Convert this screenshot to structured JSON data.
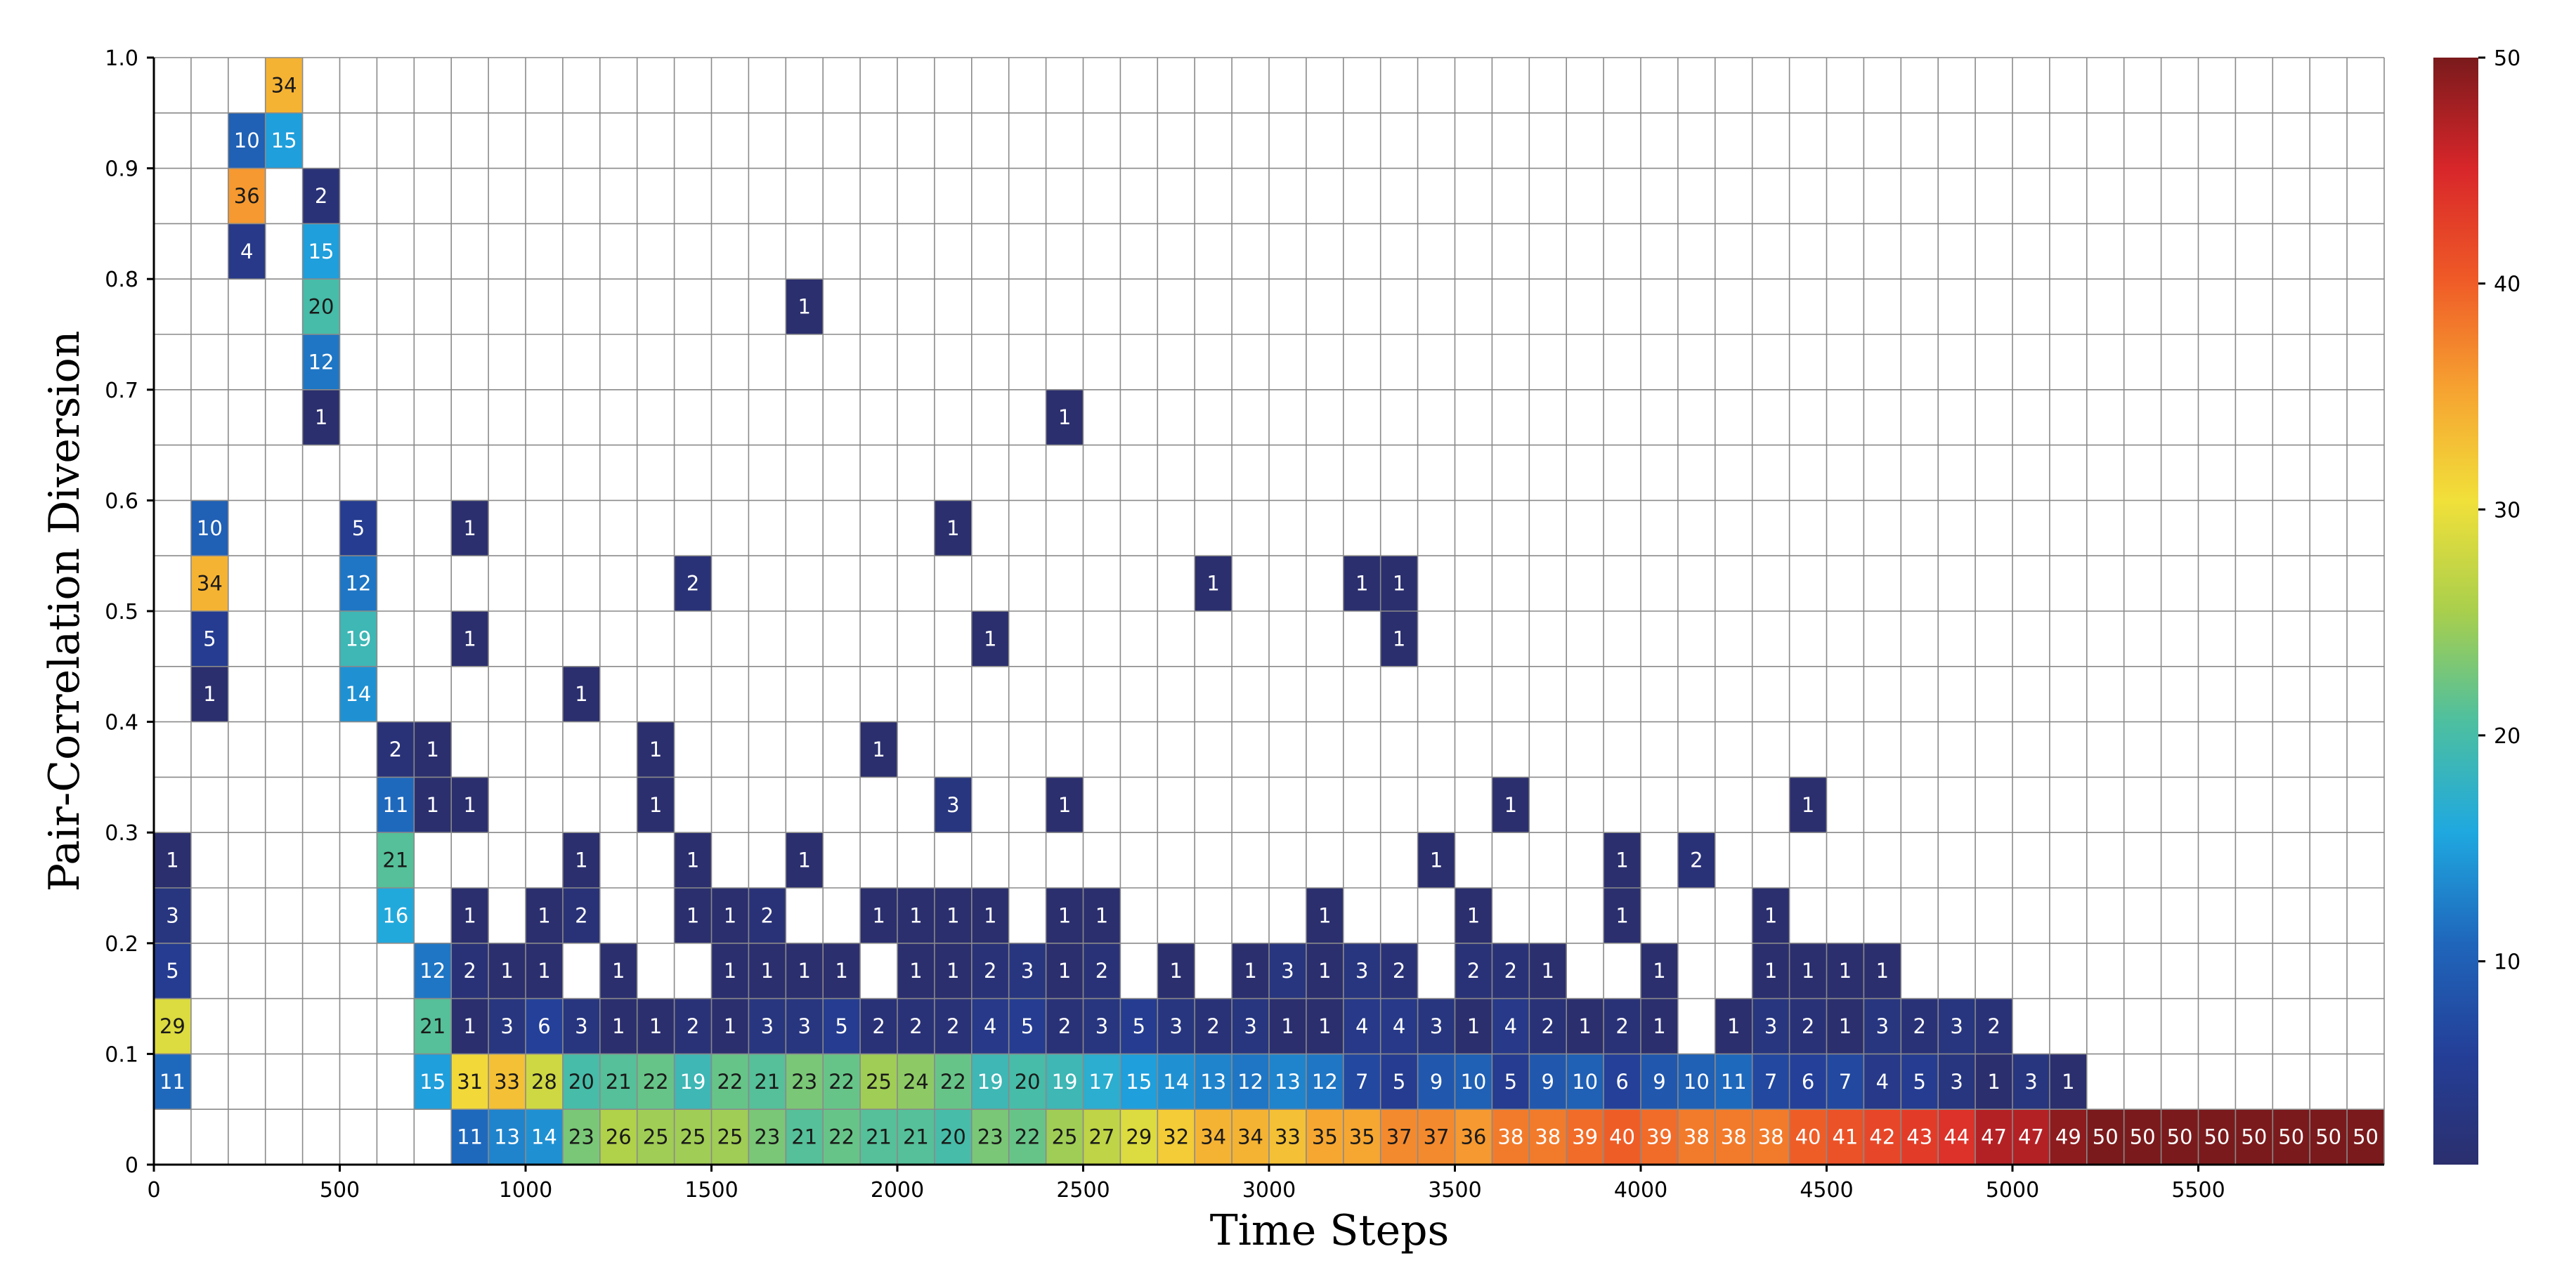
{
  "chart_data": {
    "type": "heatmap",
    "xlabel": "Time Steps",
    "ylabel": "Pair-Correlation Diversion",
    "x_bin_width": 100,
    "y_bin_width": 0.05,
    "xlim": [
      0,
      6000
    ],
    "ylim": [
      0,
      1.0
    ],
    "x_ticks": [
      0,
      500,
      1000,
      1500,
      2000,
      2500,
      3000,
      3500,
      4000,
      4500,
      5000,
      5500
    ],
    "x_tick_labels": [
      "0",
      "500",
      "1000",
      "1500",
      "2000",
      "2500",
      "3000",
      "3500",
      "4000",
      "4500",
      "5000",
      "5500"
    ],
    "y_ticks": [
      0,
      0.1,
      0.2,
      0.3,
      0.4,
      0.5,
      0.6,
      0.7,
      0.8,
      0.9,
      1.0
    ],
    "y_tick_labels": [
      "0",
      "0.1",
      "0.2",
      "0.3",
      "0.4",
      "0.5",
      "0.6",
      "0.7",
      "0.8",
      "0.9",
      "1.0"
    ],
    "colorbar": {
      "min": 1,
      "max": 50,
      "ticks": [
        10,
        20,
        30,
        40,
        50
      ],
      "tick_labels": [
        "10",
        "20",
        "30",
        "40",
        "50"
      ],
      "stops": [
        "#2b2f6e",
        "#243f98",
        "#1f66bb",
        "#1fa8e0",
        "#4dbfa0",
        "#a9cf4c",
        "#f1e03a",
        "#f6a331",
        "#ef5a27",
        "#d8262a",
        "#7a1a1c"
      ]
    },
    "cells": [
      {
        "x": 0,
        "y": 0.3,
        "v": 1
      },
      {
        "x": 0,
        "y": 0.25,
        "v": 3
      },
      {
        "x": 0,
        "y": 0.2,
        "v": 5
      },
      {
        "x": 0,
        "y": 0.15,
        "v": 29
      },
      {
        "x": 0,
        "y": 0.1,
        "v": 11
      },
      {
        "x": 100,
        "y": 0.6,
        "v": 10
      },
      {
        "x": 100,
        "y": 0.55,
        "v": 34
      },
      {
        "x": 100,
        "y": 0.5,
        "v": 5
      },
      {
        "x": 100,
        "y": 0.45,
        "v": 1
      },
      {
        "x": 200,
        "y": 0.95,
        "v": 10
      },
      {
        "x": 200,
        "y": 0.9,
        "v": 36
      },
      {
        "x": 200,
        "y": 0.85,
        "v": 4
      },
      {
        "x": 300,
        "y": 1.0,
        "v": 34
      },
      {
        "x": 300,
        "y": 0.95,
        "v": 15
      },
      {
        "x": 400,
        "y": 0.9,
        "v": 2
      },
      {
        "x": 400,
        "y": 0.85,
        "v": 15
      },
      {
        "x": 400,
        "y": 0.8,
        "v": 20
      },
      {
        "x": 400,
        "y": 0.75,
        "v": 12
      },
      {
        "x": 400,
        "y": 0.7,
        "v": 1
      },
      {
        "x": 500,
        "y": 0.6,
        "v": 5
      },
      {
        "x": 500,
        "y": 0.55,
        "v": 12
      },
      {
        "x": 500,
        "y": 0.5,
        "v": 19
      },
      {
        "x": 500,
        "y": 0.45,
        "v": 14
      },
      {
        "x": 600,
        "y": 0.4,
        "v": 2
      },
      {
        "x": 600,
        "y": 0.35,
        "v": 11
      },
      {
        "x": 600,
        "y": 0.3,
        "v": 21
      },
      {
        "x": 600,
        "y": 0.25,
        "v": 16
      },
      {
        "x": 700,
        "y": 0.4,
        "v": 1
      },
      {
        "x": 700,
        "y": 0.35,
        "v": 1
      },
      {
        "x": 700,
        "y": 0.2,
        "v": 12
      },
      {
        "x": 700,
        "y": 0.15,
        "v": 21
      },
      {
        "x": 700,
        "y": 0.1,
        "v": 15
      },
      {
        "x": 800,
        "y": 0.6,
        "v": 1
      },
      {
        "x": 800,
        "y": 0.5,
        "v": 1
      },
      {
        "x": 800,
        "y": 0.35,
        "v": 1
      },
      {
        "x": 800,
        "y": 0.25,
        "v": 1
      },
      {
        "x": 800,
        "y": 0.2,
        "v": 2
      },
      {
        "x": 800,
        "y": 0.15,
        "v": 1
      },
      {
        "x": 800,
        "y": 0.1,
        "v": 31
      },
      {
        "x": 800,
        "y": 0.05,
        "v": 11
      },
      {
        "x": 900,
        "y": 0.2,
        "v": 1
      },
      {
        "x": 900,
        "y": 0.15,
        "v": 3
      },
      {
        "x": 900,
        "y": 0.1,
        "v": 33
      },
      {
        "x": 900,
        "y": 0.05,
        "v": 13
      },
      {
        "x": 1000,
        "y": 0.25,
        "v": 1
      },
      {
        "x": 1000,
        "y": 0.2,
        "v": 1
      },
      {
        "x": 1000,
        "y": 0.15,
        "v": 6
      },
      {
        "x": 1000,
        "y": 0.1,
        "v": 28
      },
      {
        "x": 1000,
        "y": 0.05,
        "v": 14
      },
      {
        "x": 1100,
        "y": 0.45,
        "v": 1
      },
      {
        "x": 1100,
        "y": 0.3,
        "v": 1
      },
      {
        "x": 1100,
        "y": 0.25,
        "v": 2
      },
      {
        "x": 1100,
        "y": 0.15,
        "v": 3
      },
      {
        "x": 1100,
        "y": 0.1,
        "v": 20
      },
      {
        "x": 1100,
        "y": 0.05,
        "v": 23
      },
      {
        "x": 1200,
        "y": 0.2,
        "v": 1
      },
      {
        "x": 1200,
        "y": 0.15,
        "v": 1
      },
      {
        "x": 1200,
        "y": 0.1,
        "v": 21
      },
      {
        "x": 1200,
        "y": 0.05,
        "v": 26
      },
      {
        "x": 1300,
        "y": 0.4,
        "v": 1
      },
      {
        "x": 1300,
        "y": 0.35,
        "v": 1
      },
      {
        "x": 1300,
        "y": 0.15,
        "v": 1
      },
      {
        "x": 1300,
        "y": 0.1,
        "v": 22
      },
      {
        "x": 1300,
        "y": 0.05,
        "v": 25
      },
      {
        "x": 1400,
        "y": 0.55,
        "v": 2
      },
      {
        "x": 1400,
        "y": 0.3,
        "v": 1
      },
      {
        "x": 1400,
        "y": 0.25,
        "v": 1
      },
      {
        "x": 1400,
        "y": 0.15,
        "v": 2
      },
      {
        "x": 1400,
        "y": 0.1,
        "v": 19
      },
      {
        "x": 1400,
        "y": 0.05,
        "v": 25
      },
      {
        "x": 1500,
        "y": 0.25,
        "v": 1
      },
      {
        "x": 1500,
        "y": 0.2,
        "v": 1
      },
      {
        "x": 1500,
        "y": 0.15,
        "v": 1
      },
      {
        "x": 1500,
        "y": 0.1,
        "v": 22
      },
      {
        "x": 1500,
        "y": 0.05,
        "v": 25
      },
      {
        "x": 1600,
        "y": 0.25,
        "v": 2
      },
      {
        "x": 1600,
        "y": 0.2,
        "v": 1
      },
      {
        "x": 1600,
        "y": 0.15,
        "v": 3
      },
      {
        "x": 1600,
        "y": 0.1,
        "v": 21
      },
      {
        "x": 1600,
        "y": 0.05,
        "v": 23
      },
      {
        "x": 1700,
        "y": 0.8,
        "v": 1
      },
      {
        "x": 1700,
        "y": 0.3,
        "v": 1
      },
      {
        "x": 1700,
        "y": 0.2,
        "v": 1
      },
      {
        "x": 1700,
        "y": 0.15,
        "v": 3
      },
      {
        "x": 1700,
        "y": 0.1,
        "v": 23
      },
      {
        "x": 1700,
        "y": 0.05,
        "v": 21
      },
      {
        "x": 1800,
        "y": 0.2,
        "v": 1
      },
      {
        "x": 1800,
        "y": 0.15,
        "v": 5
      },
      {
        "x": 1800,
        "y": 0.1,
        "v": 22
      },
      {
        "x": 1800,
        "y": 0.05,
        "v": 22
      },
      {
        "x": 1900,
        "y": 0.4,
        "v": 1
      },
      {
        "x": 1900,
        "y": 0.25,
        "v": 1
      },
      {
        "x": 1900,
        "y": 0.15,
        "v": 2
      },
      {
        "x": 1900,
        "y": 0.1,
        "v": 25
      },
      {
        "x": 1900,
        "y": 0.05,
        "v": 21
      },
      {
        "x": 2000,
        "y": 0.25,
        "v": 1
      },
      {
        "x": 2000,
        "y": 0.2,
        "v": 1
      },
      {
        "x": 2000,
        "y": 0.15,
        "v": 2
      },
      {
        "x": 2000,
        "y": 0.1,
        "v": 24
      },
      {
        "x": 2000,
        "y": 0.05,
        "v": 21
      },
      {
        "x": 2100,
        "y": 0.6,
        "v": 1
      },
      {
        "x": 2100,
        "y": 0.35,
        "v": 3
      },
      {
        "x": 2100,
        "y": 0.25,
        "v": 1
      },
      {
        "x": 2100,
        "y": 0.2,
        "v": 1
      },
      {
        "x": 2100,
        "y": 0.15,
        "v": 2
      },
      {
        "x": 2100,
        "y": 0.1,
        "v": 22
      },
      {
        "x": 2100,
        "y": 0.05,
        "v": 20
      },
      {
        "x": 2200,
        "y": 0.5,
        "v": 1
      },
      {
        "x": 2200,
        "y": 0.25,
        "v": 1
      },
      {
        "x": 2200,
        "y": 0.2,
        "v": 2
      },
      {
        "x": 2200,
        "y": 0.15,
        "v": 4
      },
      {
        "x": 2200,
        "y": 0.1,
        "v": 19
      },
      {
        "x": 2200,
        "y": 0.05,
        "v": 23
      },
      {
        "x": 2300,
        "y": 0.2,
        "v": 3
      },
      {
        "x": 2300,
        "y": 0.15,
        "v": 5
      },
      {
        "x": 2300,
        "y": 0.1,
        "v": 20
      },
      {
        "x": 2300,
        "y": 0.05,
        "v": 22
      },
      {
        "x": 2400,
        "y": 0.7,
        "v": 1
      },
      {
        "x": 2400,
        "y": 0.35,
        "v": 1
      },
      {
        "x": 2400,
        "y": 0.25,
        "v": 1
      },
      {
        "x": 2400,
        "y": 0.2,
        "v": 1
      },
      {
        "x": 2400,
        "y": 0.15,
        "v": 2
      },
      {
        "x": 2400,
        "y": 0.1,
        "v": 19
      },
      {
        "x": 2400,
        "y": 0.05,
        "v": 25
      },
      {
        "x": 2500,
        "y": 0.25,
        "v": 1
      },
      {
        "x": 2500,
        "y": 0.2,
        "v": 2
      },
      {
        "x": 2500,
        "y": 0.15,
        "v": 3
      },
      {
        "x": 2500,
        "y": 0.1,
        "v": 17
      },
      {
        "x": 2500,
        "y": 0.05,
        "v": 27
      },
      {
        "x": 2600,
        "y": 0.15,
        "v": 5
      },
      {
        "x": 2600,
        "y": 0.1,
        "v": 15
      },
      {
        "x": 2600,
        "y": 0.05,
        "v": 29
      },
      {
        "x": 2700,
        "y": 0.2,
        "v": 1
      },
      {
        "x": 2700,
        "y": 0.15,
        "v": 3
      },
      {
        "x": 2700,
        "y": 0.1,
        "v": 14
      },
      {
        "x": 2700,
        "y": 0.05,
        "v": 32
      },
      {
        "x": 2800,
        "y": 0.55,
        "v": 1
      },
      {
        "x": 2800,
        "y": 0.15,
        "v": 2
      },
      {
        "x": 2800,
        "y": 0.1,
        "v": 13
      },
      {
        "x": 2800,
        "y": 0.05,
        "v": 34
      },
      {
        "x": 2900,
        "y": 0.2,
        "v": 1
      },
      {
        "x": 2900,
        "y": 0.15,
        "v": 3
      },
      {
        "x": 2900,
        "y": 0.1,
        "v": 12
      },
      {
        "x": 2900,
        "y": 0.05,
        "v": 34
      },
      {
        "x": 3000,
        "y": 0.2,
        "v": 3
      },
      {
        "x": 3000,
        "y": 0.15,
        "v": 1
      },
      {
        "x": 3000,
        "y": 0.1,
        "v": 13
      },
      {
        "x": 3000,
        "y": 0.05,
        "v": 33
      },
      {
        "x": 3100,
        "y": 0.25,
        "v": 1
      },
      {
        "x": 3100,
        "y": 0.2,
        "v": 1
      },
      {
        "x": 3100,
        "y": 0.15,
        "v": 1
      },
      {
        "x": 3100,
        "y": 0.1,
        "v": 12
      },
      {
        "x": 3100,
        "y": 0.05,
        "v": 35
      },
      {
        "x": 3200,
        "y": 0.55,
        "v": 1
      },
      {
        "x": 3200,
        "y": 0.2,
        "v": 3
      },
      {
        "x": 3200,
        "y": 0.15,
        "v": 4
      },
      {
        "x": 3200,
        "y": 0.1,
        "v": 7
      },
      {
        "x": 3200,
        "y": 0.05,
        "v": 35
      },
      {
        "x": 3300,
        "y": 0.55,
        "v": 1
      },
      {
        "x": 3300,
        "y": 0.5,
        "v": 1
      },
      {
        "x": 3300,
        "y": 0.2,
        "v": 2
      },
      {
        "x": 3300,
        "y": 0.15,
        "v": 4
      },
      {
        "x": 3300,
        "y": 0.1,
        "v": 5
      },
      {
        "x": 3300,
        "y": 0.05,
        "v": 37
      },
      {
        "x": 3400,
        "y": 0.3,
        "v": 1
      },
      {
        "x": 3400,
        "y": 0.15,
        "v": 3
      },
      {
        "x": 3400,
        "y": 0.1,
        "v": 9
      },
      {
        "x": 3400,
        "y": 0.05,
        "v": 37
      },
      {
        "x": 3500,
        "y": 0.25,
        "v": 1
      },
      {
        "x": 3500,
        "y": 0.2,
        "v": 2
      },
      {
        "x": 3500,
        "y": 0.15,
        "v": 1
      },
      {
        "x": 3500,
        "y": 0.1,
        "v": 10
      },
      {
        "x": 3500,
        "y": 0.05,
        "v": 36
      },
      {
        "x": 3600,
        "y": 0.35,
        "v": 1
      },
      {
        "x": 3600,
        "y": 0.2,
        "v": 2
      },
      {
        "x": 3600,
        "y": 0.15,
        "v": 4
      },
      {
        "x": 3600,
        "y": 0.1,
        "v": 5
      },
      {
        "x": 3600,
        "y": 0.05,
        "v": 38
      },
      {
        "x": 3700,
        "y": 0.2,
        "v": 1
      },
      {
        "x": 3700,
        "y": 0.15,
        "v": 2
      },
      {
        "x": 3700,
        "y": 0.1,
        "v": 9
      },
      {
        "x": 3700,
        "y": 0.05,
        "v": 38
      },
      {
        "x": 3800,
        "y": 0.15,
        "v": 1
      },
      {
        "x": 3800,
        "y": 0.1,
        "v": 10
      },
      {
        "x": 3800,
        "y": 0.05,
        "v": 39
      },
      {
        "x": 3900,
        "y": 0.3,
        "v": 1
      },
      {
        "x": 3900,
        "y": 0.25,
        "v": 1
      },
      {
        "x": 3900,
        "y": 0.15,
        "v": 2
      },
      {
        "x": 3900,
        "y": 0.1,
        "v": 6
      },
      {
        "x": 3900,
        "y": 0.05,
        "v": 40
      },
      {
        "x": 4000,
        "y": 0.2,
        "v": 1
      },
      {
        "x": 4000,
        "y": 0.15,
        "v": 1
      },
      {
        "x": 4000,
        "y": 0.1,
        "v": 9
      },
      {
        "x": 4000,
        "y": 0.05,
        "v": 39
      },
      {
        "x": 4100,
        "y": 0.3,
        "v": 2
      },
      {
        "x": 4100,
        "y": 0.1,
        "v": 10
      },
      {
        "x": 4100,
        "y": 0.05,
        "v": 38
      },
      {
        "x": 4200,
        "y": 0.15,
        "v": 1
      },
      {
        "x": 4200,
        "y": 0.1,
        "v": 11
      },
      {
        "x": 4200,
        "y": 0.05,
        "v": 38
      },
      {
        "x": 4300,
        "y": 0.25,
        "v": 1
      },
      {
        "x": 4300,
        "y": 0.2,
        "v": 1
      },
      {
        "x": 4300,
        "y": 0.15,
        "v": 3
      },
      {
        "x": 4300,
        "y": 0.1,
        "v": 7
      },
      {
        "x": 4300,
        "y": 0.05,
        "v": 38
      },
      {
        "x": 4400,
        "y": 0.35,
        "v": 1
      },
      {
        "x": 4400,
        "y": 0.2,
        "v": 1
      },
      {
        "x": 4400,
        "y": 0.15,
        "v": 2
      },
      {
        "x": 4400,
        "y": 0.1,
        "v": 6
      },
      {
        "x": 4400,
        "y": 0.05,
        "v": 40
      },
      {
        "x": 4500,
        "y": 0.2,
        "v": 1
      },
      {
        "x": 4500,
        "y": 0.15,
        "v": 1
      },
      {
        "x": 4500,
        "y": 0.1,
        "v": 7
      },
      {
        "x": 4500,
        "y": 0.05,
        "v": 41
      },
      {
        "x": 4600,
        "y": 0.2,
        "v": 1
      },
      {
        "x": 4600,
        "y": 0.15,
        "v": 3
      },
      {
        "x": 4600,
        "y": 0.1,
        "v": 4
      },
      {
        "x": 4600,
        "y": 0.05,
        "v": 42
      },
      {
        "x": 4700,
        "y": 0.15,
        "v": 2
      },
      {
        "x": 4700,
        "y": 0.1,
        "v": 5
      },
      {
        "x": 4700,
        "y": 0.05,
        "v": 43
      },
      {
        "x": 4800,
        "y": 0.15,
        "v": 3
      },
      {
        "x": 4800,
        "y": 0.1,
        "v": 3
      },
      {
        "x": 4800,
        "y": 0.05,
        "v": 44
      },
      {
        "x": 4900,
        "y": 0.15,
        "v": 2
      },
      {
        "x": 4900,
        "y": 0.1,
        "v": 1
      },
      {
        "x": 4900,
        "y": 0.05,
        "v": 47
      },
      {
        "x": 5000,
        "y": 0.1,
        "v": 3
      },
      {
        "x": 5000,
        "y": 0.05,
        "v": 47
      },
      {
        "x": 5100,
        "y": 0.1,
        "v": 1
      },
      {
        "x": 5100,
        "y": 0.05,
        "v": 49
      },
      {
        "x": 5200,
        "y": 0.05,
        "v": 50
      },
      {
        "x": 5300,
        "y": 0.05,
        "v": 50
      },
      {
        "x": 5400,
        "y": 0.05,
        "v": 50
      },
      {
        "x": 5500,
        "y": 0.05,
        "v": 50
      },
      {
        "x": 5600,
        "y": 0.05,
        "v": 50
      },
      {
        "x": 5700,
        "y": 0.05,
        "v": 50
      },
      {
        "x": 5800,
        "y": 0.05,
        "v": 50
      },
      {
        "x": 5900,
        "y": 0.05,
        "v": 50
      }
    ]
  }
}
